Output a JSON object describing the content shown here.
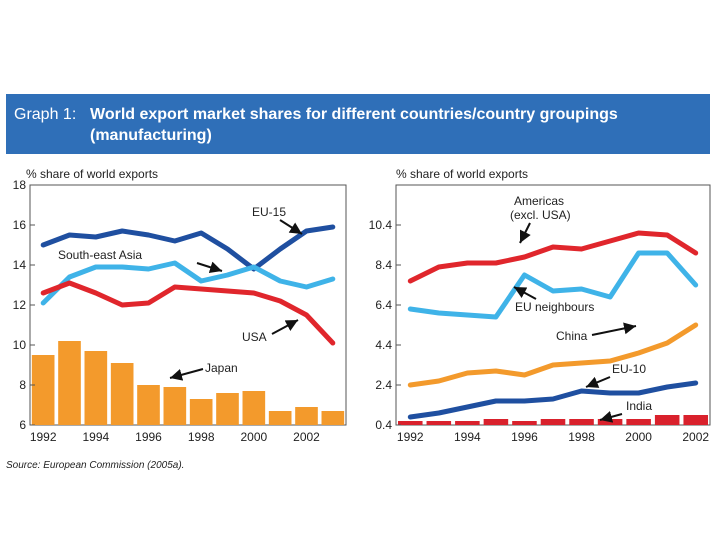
{
  "header": {
    "graph_label": "Graph 1:",
    "title": "World export market shares for different countries/country groupings (manufacturing)"
  },
  "footer": {
    "source_prefix": "Source:",
    "source_text": " European Commission (2005a)."
  },
  "chart_data": [
    {
      "type": "line",
      "ylabel": "% share of world exports",
      "ylim": [
        6,
        18
      ],
      "yticks": [
        6,
        8,
        10,
        12,
        14,
        16,
        18
      ],
      "xlim": [
        1991.5,
        2003.5
      ],
      "xtick_labels": [
        "1992",
        "1994",
        "1996",
        "1998",
        "2000",
        "2002"
      ],
      "x": [
        1992,
        1993,
        1994,
        1995,
        1996,
        1997,
        1998,
        1999,
        2000,
        2001,
        2002,
        2003
      ],
      "series": [
        {
          "name": "EU-15",
          "color": "#1f4fa0",
          "values": [
            15.0,
            15.5,
            15.4,
            15.7,
            15.5,
            15.2,
            15.6,
            14.8,
            13.8,
            14.8,
            15.7,
            15.9
          ]
        },
        {
          "name": "South-east Asia",
          "color": "#3fb3e8",
          "values": [
            12.1,
            13.4,
            13.9,
            13.9,
            13.8,
            14.1,
            13.2,
            13.5,
            13.9,
            13.2,
            12.9,
            13.3
          ]
        },
        {
          "name": "USA",
          "color": "#e0262c",
          "values": [
            12.6,
            13.1,
            12.6,
            12.0,
            12.1,
            12.9,
            12.8,
            12.7,
            12.6,
            12.2,
            11.5,
            10.1
          ]
        },
        {
          "name": "Japan",
          "color": "#f39a2c",
          "kind": "bar",
          "values": [
            9.5,
            10.2,
            9.7,
            9.1,
            8.0,
            7.9,
            7.3,
            7.6,
            7.7,
            6.7,
            6.9,
            6.7
          ]
        }
      ],
      "labels": {
        "eu15": "EU-15",
        "sea": "South-east Asia",
        "usa": "USA",
        "japan": "Japan"
      }
    },
    {
      "type": "line",
      "ylabel": "% share of world exports",
      "ylim": [
        0.4,
        12.4
      ],
      "yticks_labels": [
        "0.4",
        "2.4",
        "4.4",
        "6.4",
        "8.4",
        "10.4"
      ],
      "yticks": [
        0.4,
        2.4,
        4.4,
        6.4,
        8.4,
        10.4
      ],
      "xlim": [
        1991.5,
        2002.5
      ],
      "xtick_labels": [
        "1992",
        "1994",
        "1996",
        "1998",
        "2000",
        "2002"
      ],
      "x": [
        1992,
        1993,
        1994,
        1995,
        1996,
        1997,
        1998,
        1999,
        2000,
        2001,
        2002
      ],
      "series": [
        {
          "name": "Americas (excl. USA)",
          "color": "#e0262c",
          "values": [
            7.6,
            8.3,
            8.5,
            8.5,
            8.8,
            9.3,
            9.2,
            9.6,
            10.0,
            9.9,
            9.0
          ]
        },
        {
          "name": "EU neighbours",
          "color": "#3fb3e8",
          "values": [
            6.2,
            6.0,
            5.9,
            5.8,
            7.9,
            7.1,
            7.2,
            6.8,
            9.0,
            9.0,
            7.4
          ]
        },
        {
          "name": "China",
          "color": "#f39a2c",
          "values": [
            2.4,
            2.6,
            3.0,
            3.1,
            2.9,
            3.4,
            3.5,
            3.6,
            4.0,
            4.5,
            5.4
          ]
        },
        {
          "name": "EU-10",
          "color": "#1f4fa0",
          "values": [
            0.8,
            1.0,
            1.3,
            1.6,
            1.6,
            1.7,
            2.1,
            2.0,
            2.0,
            2.3,
            2.5
          ]
        },
        {
          "name": "India",
          "color": "#d9212c",
          "kind": "bar",
          "values": [
            0.6,
            0.6,
            0.6,
            0.7,
            0.6,
            0.7,
            0.7,
            0.7,
            0.7,
            0.9,
            0.9
          ]
        }
      ],
      "labels": {
        "americas_1": "Americas",
        "americas_2": "(excl. USA)",
        "eun": "EU neighbours",
        "china": "China",
        "eu10": "EU-10",
        "india": "India"
      }
    }
  ]
}
